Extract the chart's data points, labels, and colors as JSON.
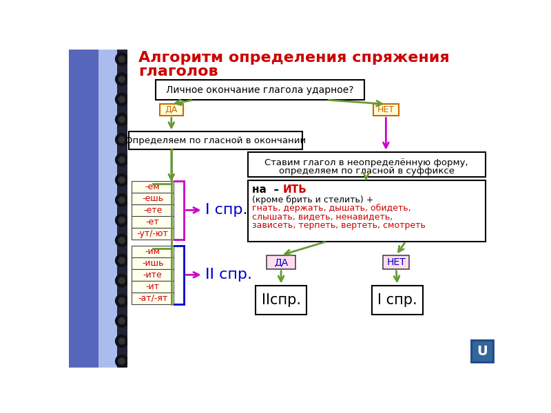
{
  "title_line1": "Алгоритм определения спряжения",
  "title_line2": "глаголов",
  "title_color": "#cc0000",
  "bg_color": "#f5f5f5",
  "notebook_blue": "#5566bb",
  "notebook_dark": "#333355",
  "box_q": "Личное окончание глагола ударное?",
  "box_da1": "ДА",
  "box_net1": "НЕТ",
  "box_opredelyaem": "Определяем по гласной в окончании",
  "box_stavim_1": "Ставим глагол в неопределённую форму,",
  "box_stavim_2": "определяем по гласной в суффиксе",
  "ith_line1a": "на  –  ",
  "ith_line1b": "ИТЬ",
  "ith_line2": "(кроме брить и стелить) +",
  "ith_line3": "гнать, держать, дышать, обидеть,",
  "ith_line4": "слышать, видеть, ненавидеть,",
  "ith_line5": "зависеть, терпеть, вертеть, смотреть",
  "endings1": [
    "-ем",
    "-ешь",
    "-ете",
    "-ет",
    "-ут/-ют"
  ],
  "endings2": [
    "-им",
    "-ишь",
    "-ите",
    "-ит",
    "-ат/-ят"
  ],
  "label_I_spr": "I спр.",
  "label_II_spr": "II спр.",
  "box_da2": "ДА",
  "box_net2": "НЕТ",
  "box_IIspr": "IIспр.",
  "box_Ispr": "I спр.",
  "green": "#669933",
  "magenta": "#cc00cc",
  "red": "#cc0000",
  "blue": "#0000cc",
  "orange": "#cc6600",
  "da_bg1": "#ffffdd",
  "da_bg2": "#ffddee",
  "net_bg2": "#ffddee"
}
